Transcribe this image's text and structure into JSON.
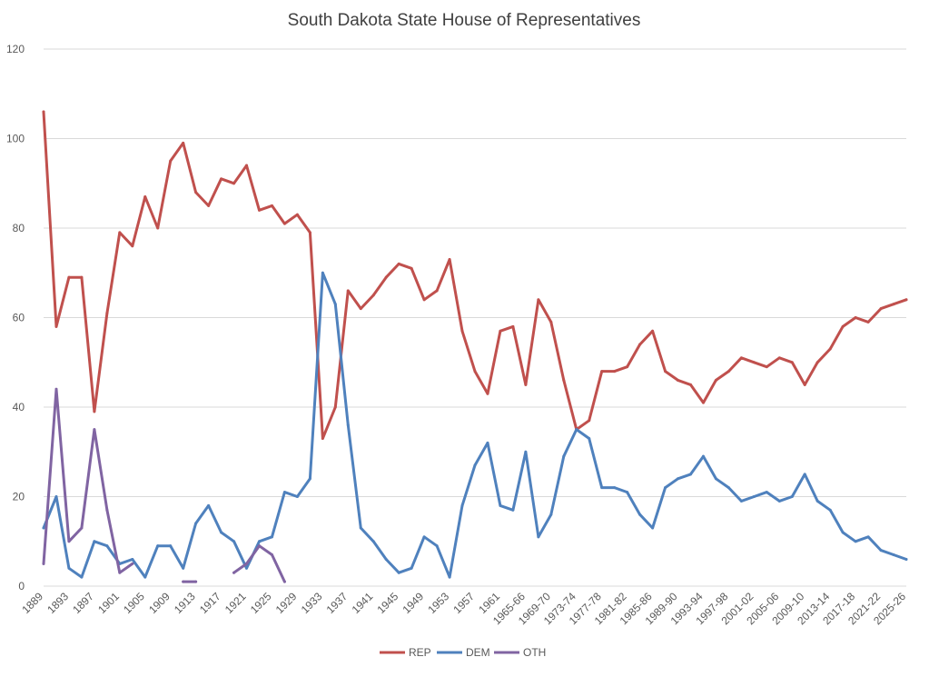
{
  "chart_data": {
    "type": "line",
    "title": "South Dakota State House of Representatives",
    "xlabel": "",
    "ylabel": "",
    "ylim": [
      0,
      120
    ],
    "yticks": [
      0,
      20,
      40,
      60,
      80,
      100,
      120
    ],
    "grid": true,
    "legend_position": "bottom",
    "x": [
      "1889",
      "1891",
      "1893",
      "1895",
      "1897",
      "1899",
      "1901",
      "1903",
      "1905",
      "1907",
      "1909",
      "1911",
      "1913",
      "1915",
      "1917",
      "1919",
      "1921",
      "1923",
      "1925",
      "1927",
      "1929",
      "1931",
      "1933",
      "1935",
      "1937",
      "1939",
      "1941",
      "1943",
      "1945",
      "1947",
      "1949",
      "1951",
      "1953",
      "1955",
      "1957",
      "1959",
      "1961",
      "1963",
      "1965-66",
      "1967-68",
      "1969-70",
      "1971-72",
      "1973-74",
      "1975-76",
      "1977-78",
      "1979-80",
      "1981-82",
      "1983-84",
      "1985-86",
      "1987-88",
      "1989-90",
      "1991-92",
      "1993-94",
      "1995-96",
      "1997-98",
      "1999-00",
      "2001-02",
      "2003-04",
      "2005-06",
      "2007-08",
      "2009-10",
      "2011-12",
      "2013-14",
      "2015-16",
      "2017-18",
      "2019-20",
      "2021-22",
      "2023-24",
      "2025-26"
    ],
    "x_tick_labels": [
      "1889",
      "1893",
      "1897",
      "1901",
      "1905",
      "1909",
      "1913",
      "1917",
      "1921",
      "1925",
      "1929",
      "1933",
      "1937",
      "1941",
      "1945",
      "1949",
      "1953",
      "1957",
      "1961",
      "1965-66",
      "1969-70",
      "1973-74",
      "1977-78",
      "1981-82",
      "1985-86",
      "1989-90",
      "1993-94",
      "1997-98",
      "2001-02",
      "2005-06",
      "2009-10",
      "2013-14",
      "2017-18",
      "2021-22",
      "2025-26"
    ],
    "series": [
      {
        "name": "REP",
        "color": "#c0504d",
        "values": [
          106,
          58,
          69,
          69,
          39,
          61,
          79,
          76,
          87,
          80,
          95,
          99,
          88,
          85,
          91,
          90,
          94,
          84,
          85,
          81,
          83,
          79,
          33,
          40,
          66,
          62,
          65,
          69,
          72,
          71,
          64,
          66,
          73,
          57,
          48,
          43,
          57,
          58,
          45,
          64,
          59,
          46,
          35,
          37,
          48,
          48,
          49,
          54,
          57,
          48,
          46,
          45,
          41,
          46,
          48,
          51,
          50,
          49,
          51,
          50,
          45,
          50,
          53,
          58,
          60,
          59,
          62,
          63,
          64
        ]
      },
      {
        "name": "DEM",
        "color": "#4f81bd",
        "values": [
          13,
          20,
          4,
          2,
          10,
          9,
          5,
          6,
          2,
          9,
          9,
          4,
          14,
          18,
          12,
          10,
          4,
          10,
          11,
          21,
          20,
          24,
          70,
          63,
          36,
          13,
          10,
          6,
          3,
          4,
          11,
          9,
          2,
          18,
          27,
          32,
          18,
          17,
          30,
          11,
          16,
          29,
          35,
          33,
          22,
          22,
          21,
          16,
          13,
          22,
          24,
          25,
          29,
          24,
          22,
          19,
          20,
          21,
          19,
          20,
          25,
          19,
          17,
          12,
          10,
          11,
          8,
          7,
          6
        ]
      },
      {
        "name": "OTH",
        "color": "#8064a2",
        "values": [
          5,
          44,
          10,
          13,
          35,
          17,
          3,
          5,
          null,
          null,
          null,
          1,
          1,
          null,
          null,
          3,
          5,
          9,
          7,
          1,
          null,
          null,
          null,
          null,
          null,
          null,
          null,
          null,
          null,
          null,
          null,
          null,
          null,
          null,
          null,
          null,
          null,
          null,
          null,
          null,
          null,
          null,
          null,
          null,
          null,
          null,
          null,
          null,
          null,
          null,
          null,
          null,
          null,
          null,
          null,
          null,
          null,
          null,
          null,
          null,
          null,
          null,
          null,
          null,
          null,
          null,
          null,
          null,
          null
        ]
      }
    ]
  }
}
